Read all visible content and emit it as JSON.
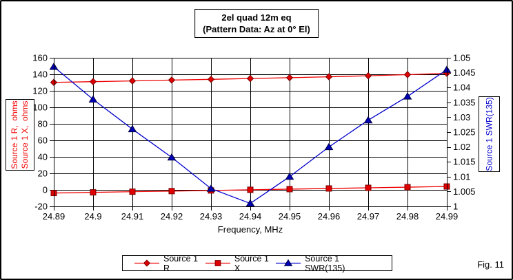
{
  "figure_caption": "Fig. 11",
  "chart_data": {
    "type": "line",
    "title_lines": [
      "2el quad 12m eq",
      "(Pattern Data: Az at 0° El)"
    ],
    "xlabel": "Frequency, MHz",
    "grid": true,
    "legend_position": "bottom",
    "x_range": [
      24.89,
      24.99
    ],
    "x": [
      24.89,
      24.9,
      24.91,
      24.92,
      24.93,
      24.94,
      24.95,
      24.96,
      24.97,
      24.98,
      24.99
    ],
    "x_tick_labels": [
      "24.89",
      "24.9",
      "24.91",
      "24.92",
      "24.93",
      "24.94",
      "24.95",
      "24.96",
      "24.97",
      "24.98",
      "24.99"
    ],
    "left_axis": {
      "label_lines": [
        "Source 1 R,  ohms",
        "Source 1 X,  ohms"
      ],
      "label_color": "#f00000",
      "range": [
        -20,
        160
      ],
      "tick_values": [
        160,
        140,
        120,
        100,
        80,
        60,
        40,
        20,
        0,
        -20
      ],
      "tick_labels": [
        "160",
        "140",
        "120",
        "100",
        "80",
        "60",
        "40",
        "20",
        "0",
        "-20"
      ]
    },
    "right_axis": {
      "label": "Source 1 SWR(135)",
      "label_color": "#0000cc",
      "range": [
        1,
        1.05
      ],
      "tick_values": [
        1.05,
        1.045,
        1.04,
        1.035,
        1.03,
        1.025,
        1.02,
        1.015,
        1.01,
        1.005,
        1
      ],
      "tick_labels": [
        "1.05",
        "1.045",
        "1.04",
        "1.035",
        "1.03",
        "1.025",
        "1.02",
        "1.015",
        "1.01",
        "1.005",
        "1"
      ]
    },
    "series": [
      {
        "name": "Source 1 R",
        "axis": "left",
        "marker": "diamond",
        "line_color": "#f00000",
        "marker_fill": "#e00000",
        "marker_edge": "#7a0000",
        "values": [
          130.2,
          131.1,
          132.0,
          133.0,
          133.9,
          134.9,
          135.9,
          137.0,
          138.2,
          139.6,
          141.2
        ]
      },
      {
        "name": "Source 1 X",
        "axis": "left",
        "marker": "square",
        "line_color": "#f00000",
        "marker_fill": "#e00000",
        "marker_edge": "#7a0000",
        "values": [
          -3.8,
          -3.0,
          -2.2,
          -1.5,
          -0.7,
          0.1,
          0.9,
          1.7,
          2.5,
          3.3,
          4.1
        ]
      },
      {
        "name": "Source 1 SWR(135)",
        "axis": "right",
        "marker": "triangle",
        "line_color": "#0000cc",
        "marker_fill": "#0000b4",
        "marker_edge": "#000046",
        "values": [
          1.047,
          1.036,
          1.026,
          1.0165,
          1.006,
          1.001,
          1.01,
          1.02,
          1.029,
          1.037,
          1.046
        ]
      }
    ]
  }
}
